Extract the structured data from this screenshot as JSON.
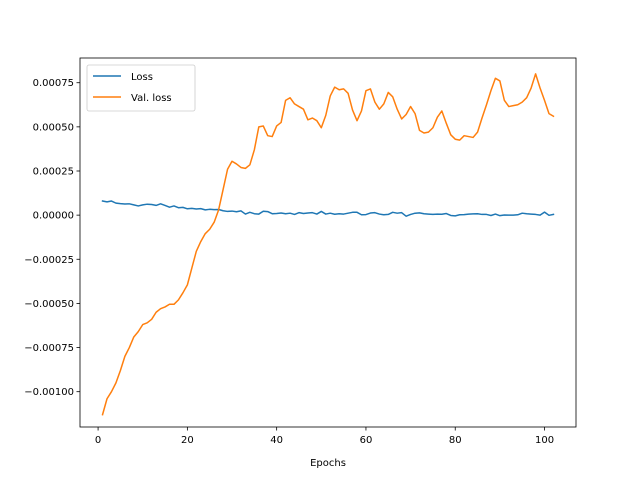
{
  "chart_data": {
    "type": "line",
    "title": "",
    "xlabel": "Epochs",
    "ylabel": "",
    "xlim": [
      -4.05,
      107.05
    ],
    "ylim": [
      -0.0012,
      0.00089
    ],
    "xticks": [
      0,
      20,
      40,
      60,
      80,
      100
    ],
    "xtick_labels": [
      "0",
      "20",
      "40",
      "60",
      "80",
      "100"
    ],
    "yticks": [
      -0.001,
      -0.00075,
      -0.0005,
      -0.00025,
      0,
      0.00025,
      0.0005,
      0.00075
    ],
    "ytick_labels": [
      "−0.00100",
      "−0.00075",
      "−0.00050",
      "−0.00025",
      "0.00000",
      "0.00025",
      "0.00050",
      "0.00075"
    ],
    "grid": false,
    "legend_position": "top-left",
    "x": [
      1,
      2,
      3,
      4,
      5,
      6,
      7,
      8,
      9,
      10,
      11,
      12,
      13,
      14,
      15,
      16,
      17,
      18,
      19,
      20,
      21,
      22,
      23,
      24,
      25,
      26,
      27,
      28,
      29,
      30,
      31,
      32,
      33,
      34,
      35,
      36,
      37,
      38,
      39,
      40,
      41,
      42,
      43,
      44,
      45,
      46,
      47,
      48,
      49,
      50,
      51,
      52,
      53,
      54,
      55,
      56,
      57,
      58,
      59,
      60,
      61,
      62,
      63,
      64,
      65,
      66,
      67,
      68,
      69,
      70,
      71,
      72,
      73,
      74,
      75,
      76,
      77,
      78,
      79,
      80,
      81,
      82,
      83,
      84,
      85,
      86,
      87,
      88,
      89,
      90,
      91,
      92,
      93,
      94,
      95,
      96,
      97,
      98,
      99,
      100,
      101,
      102
    ],
    "series": [
      {
        "name": "Loss",
        "color": "#1f77b4",
        "values": [
          8e-05,
          7.5e-05,
          8e-05,
          6.8e-05,
          6.5e-05,
          6.3e-05,
          6.4e-05,
          5.8e-05,
          5.2e-05,
          5.8e-05,
          6.2e-05,
          6e-05,
          5.5e-05,
          6.4e-05,
          5.5e-05,
          4.5e-05,
          5.2e-05,
          4.2e-05,
          4.4e-05,
          3.6e-05,
          3.8e-05,
          3.5e-05,
          3.7e-05,
          3e-05,
          3.3e-05,
          3.1e-05,
          3.2e-05,
          2.5e-05,
          2.1e-05,
          2.3e-05,
          1.9e-05,
          2.4e-05,
          6e-06,
          1.6e-05,
          8e-06,
          6e-06,
          2.2e-05,
          2e-05,
          8e-06,
          9e-06,
          1.2e-05,
          8e-06,
          1.1e-05,
          4e-06,
          1.4e-05,
          9e-06,
          1.2e-05,
          1.4e-05,
          6e-06,
          2.1e-05,
          6e-06,
          1.1e-05,
          5e-06,
          8e-06,
          6e-06,
          1.1e-05,
          1.6e-05,
          1.6e-05,
          2e-06,
          3e-06,
          1.2e-05,
          1.4e-05,
          6e-06,
          2e-06,
          4e-06,
          1.6e-05,
          1.1e-05,
          1.4e-05,
          -6e-06,
          4e-06,
          1.1e-05,
          1.3e-05,
          8e-06,
          6e-06,
          4e-06,
          6e-06,
          5e-06,
          9e-06,
          -2e-06,
          -4e-06,
          2e-06,
          3e-06,
          6e-06,
          7e-06,
          8e-06,
          4e-06,
          4e-06,
          -2e-06,
          6e-06,
          -3e-06,
          1e-06,
          0.0,
          0.0,
          2e-06,
          1.1e-05,
          8e-06,
          6e-06,
          4e-06,
          0.0,
          1.7e-05,
          -1e-06,
          4e-06
        ]
      },
      {
        "name": "Val. loss",
        "color": "#ff7f0e",
        "values": [
          -0.00113,
          -0.00104,
          -0.001,
          -0.00095,
          -0.00088,
          -0.0008,
          -0.00075,
          -0.00069,
          -0.00066,
          -0.00062,
          -0.00061,
          -0.00059,
          -0.00055,
          -0.00053,
          -0.00052,
          -0.000505,
          -0.000505,
          -0.00048,
          -0.00044,
          -0.000395,
          -0.0003,
          -0.000205,
          -0.00015,
          -0.000105,
          -8e-05,
          -4e-05,
          3e-05,
          0.000145,
          0.00026,
          0.000305,
          0.00029,
          0.00027,
          0.000265,
          0.000285,
          0.00037,
          0.0005,
          0.000505,
          0.00045,
          0.000445,
          0.000505,
          0.000525,
          0.00065,
          0.000665,
          0.00063,
          0.000615,
          0.0006,
          0.00054,
          0.00055,
          0.000535,
          0.000495,
          0.000565,
          0.000675,
          0.000725,
          0.00071,
          0.000715,
          0.00069,
          0.000595,
          0.000535,
          0.00059,
          0.000705,
          0.000715,
          0.00064,
          0.0006,
          0.00063,
          0.000695,
          0.00067,
          0.0006,
          0.000545,
          0.00057,
          0.000615,
          0.000575,
          0.00048,
          0.000465,
          0.00047,
          0.000495,
          0.000555,
          0.00059,
          0.00052,
          0.000455,
          0.00043,
          0.000425,
          0.00045,
          0.000445,
          0.00044,
          0.00047,
          0.00055,
          0.000625,
          0.000705,
          0.000775,
          0.00076,
          0.00065,
          0.000615,
          0.00062,
          0.000625,
          0.00064,
          0.000665,
          0.00072,
          0.0008,
          0.00072,
          0.00065,
          0.000575,
          0.00056
        ]
      }
    ]
  }
}
